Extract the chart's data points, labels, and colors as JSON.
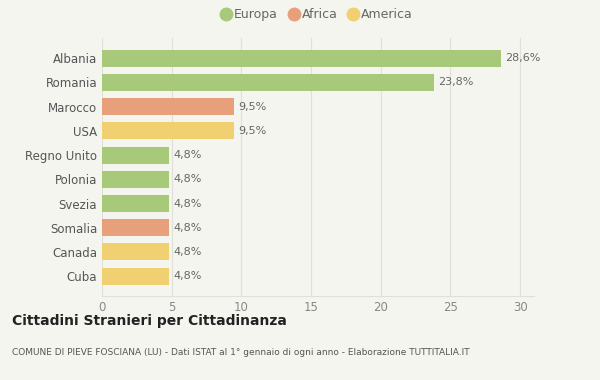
{
  "categories": [
    "Albania",
    "Romania",
    "Marocco",
    "USA",
    "Regno Unito",
    "Polonia",
    "Svezia",
    "Somalia",
    "Canada",
    "Cuba"
  ],
  "values": [
    28.6,
    23.8,
    9.5,
    9.5,
    4.8,
    4.8,
    4.8,
    4.8,
    4.8,
    4.8
  ],
  "labels": [
    "28,6%",
    "23,8%",
    "9,5%",
    "9,5%",
    "4,8%",
    "4,8%",
    "4,8%",
    "4,8%",
    "4,8%",
    "4,8%"
  ],
  "colors": [
    "#a8c87a",
    "#a8c87a",
    "#e8a07c",
    "#f0d070",
    "#a8c87a",
    "#a8c87a",
    "#a8c87a",
    "#e8a07c",
    "#f0d070",
    "#f0d070"
  ],
  "legend_labels": [
    "Europa",
    "Africa",
    "America"
  ],
  "legend_colors": [
    "#a8c87a",
    "#e8a07c",
    "#f0d070"
  ],
  "xlim": [
    0,
    31
  ],
  "xticks": [
    0,
    5,
    10,
    15,
    20,
    25,
    30
  ],
  "title": "Cittadini Stranieri per Cittadinanza",
  "subtitle": "COMUNE DI PIEVE FOSCIANA (LU) - Dati ISTAT al 1° gennaio di ogni anno - Elaborazione TUTTITALIA.IT",
  "bg_color": "#f5f5f0",
  "grid_color": "#e0e0d8"
}
